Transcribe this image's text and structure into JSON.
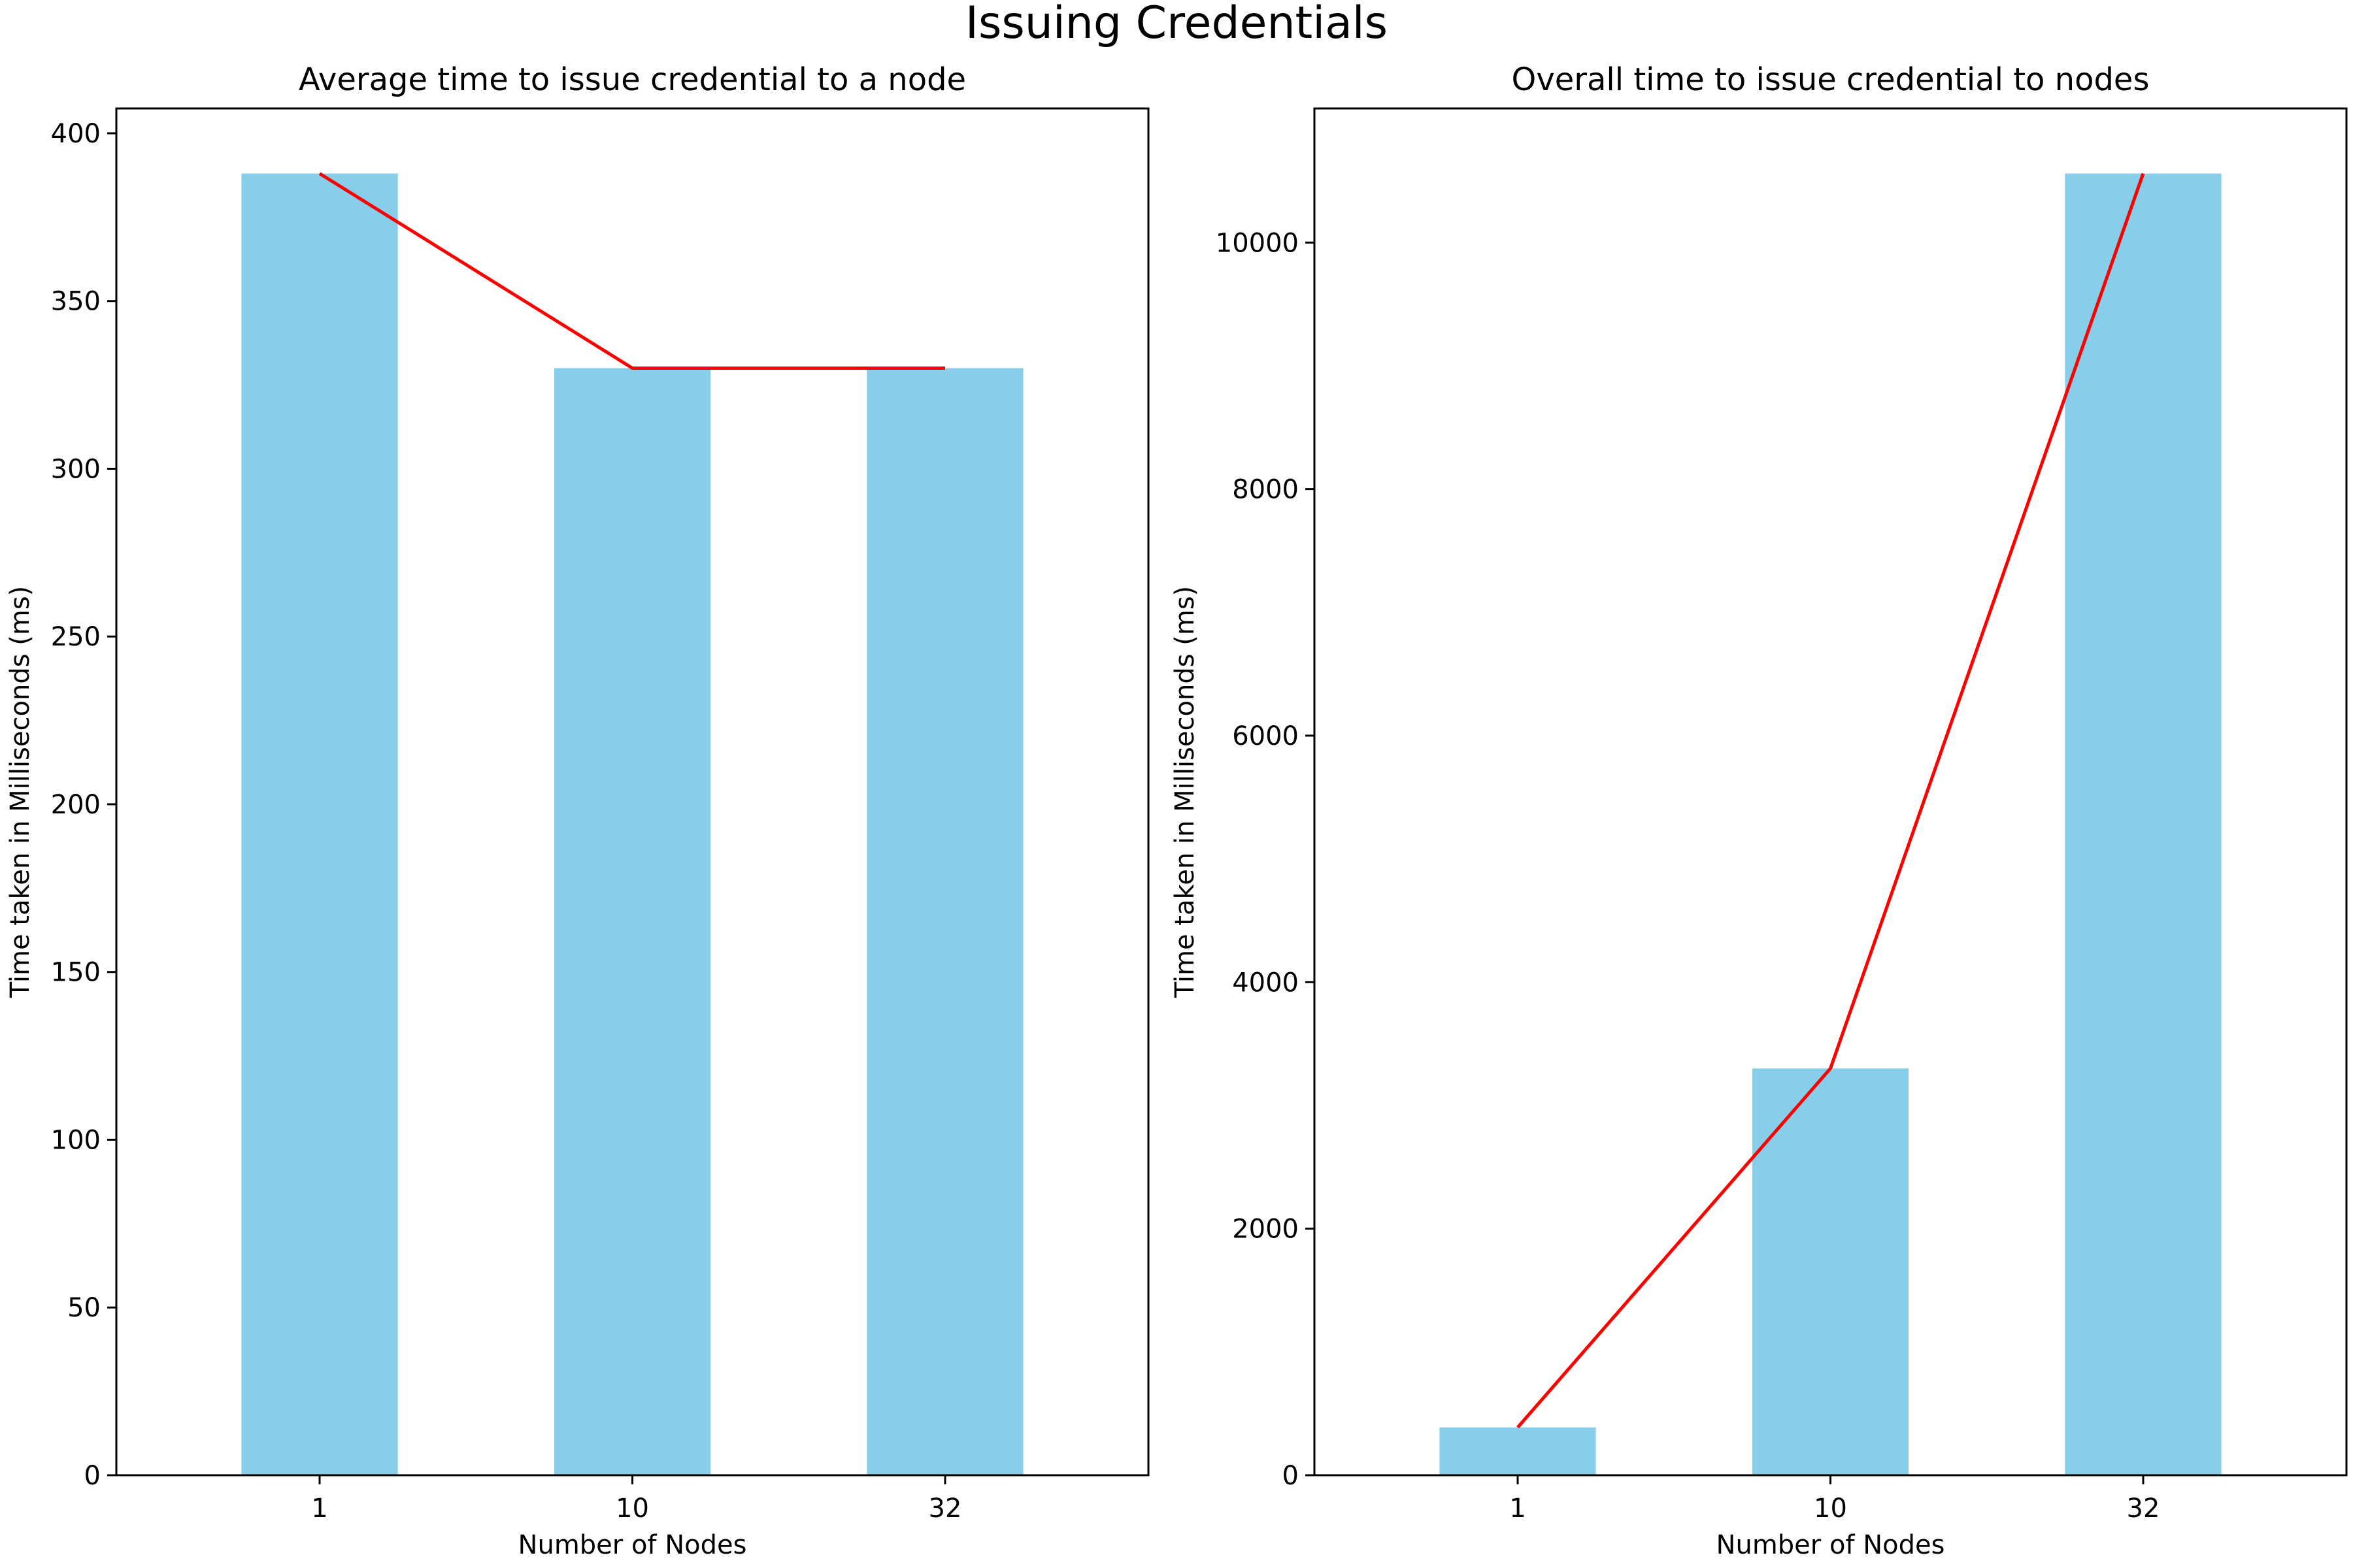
{
  "figure": {
    "suptitle": "Issuing Credentials"
  },
  "chart_data": [
    {
      "type": "bar",
      "title": "Average time to issue credential to a node",
      "xlabel": "Number of Nodes",
      "ylabel": "Time taken in Milliseconds (ms)",
      "categories": [
        "1",
        "10",
        "32"
      ],
      "values": [
        388,
        330,
        330
      ],
      "line_values": [
        388,
        330,
        330
      ],
      "ylim": [
        0,
        407.4
      ],
      "yticks": [
        0,
        50,
        100,
        150,
        200,
        250,
        300,
        350,
        400
      ],
      "grid": false,
      "bar_color": "#87CEEB",
      "line_color": "#FF0000"
    },
    {
      "type": "bar",
      "title": "Overall time to issue credential to nodes",
      "xlabel": "Number of Nodes",
      "ylabel": "Time taken in Milliseconds (ms)",
      "categories": [
        "1",
        "10",
        "32"
      ],
      "values": [
        388,
        3300,
        10560
      ],
      "line_values": [
        388,
        3300,
        10560
      ],
      "ylim": [
        0,
        11088
      ],
      "yticks": [
        0,
        2000,
        4000,
        6000,
        8000,
        10000
      ],
      "grid": false,
      "bar_color": "#87CEEB",
      "line_color": "#FF0000"
    }
  ]
}
